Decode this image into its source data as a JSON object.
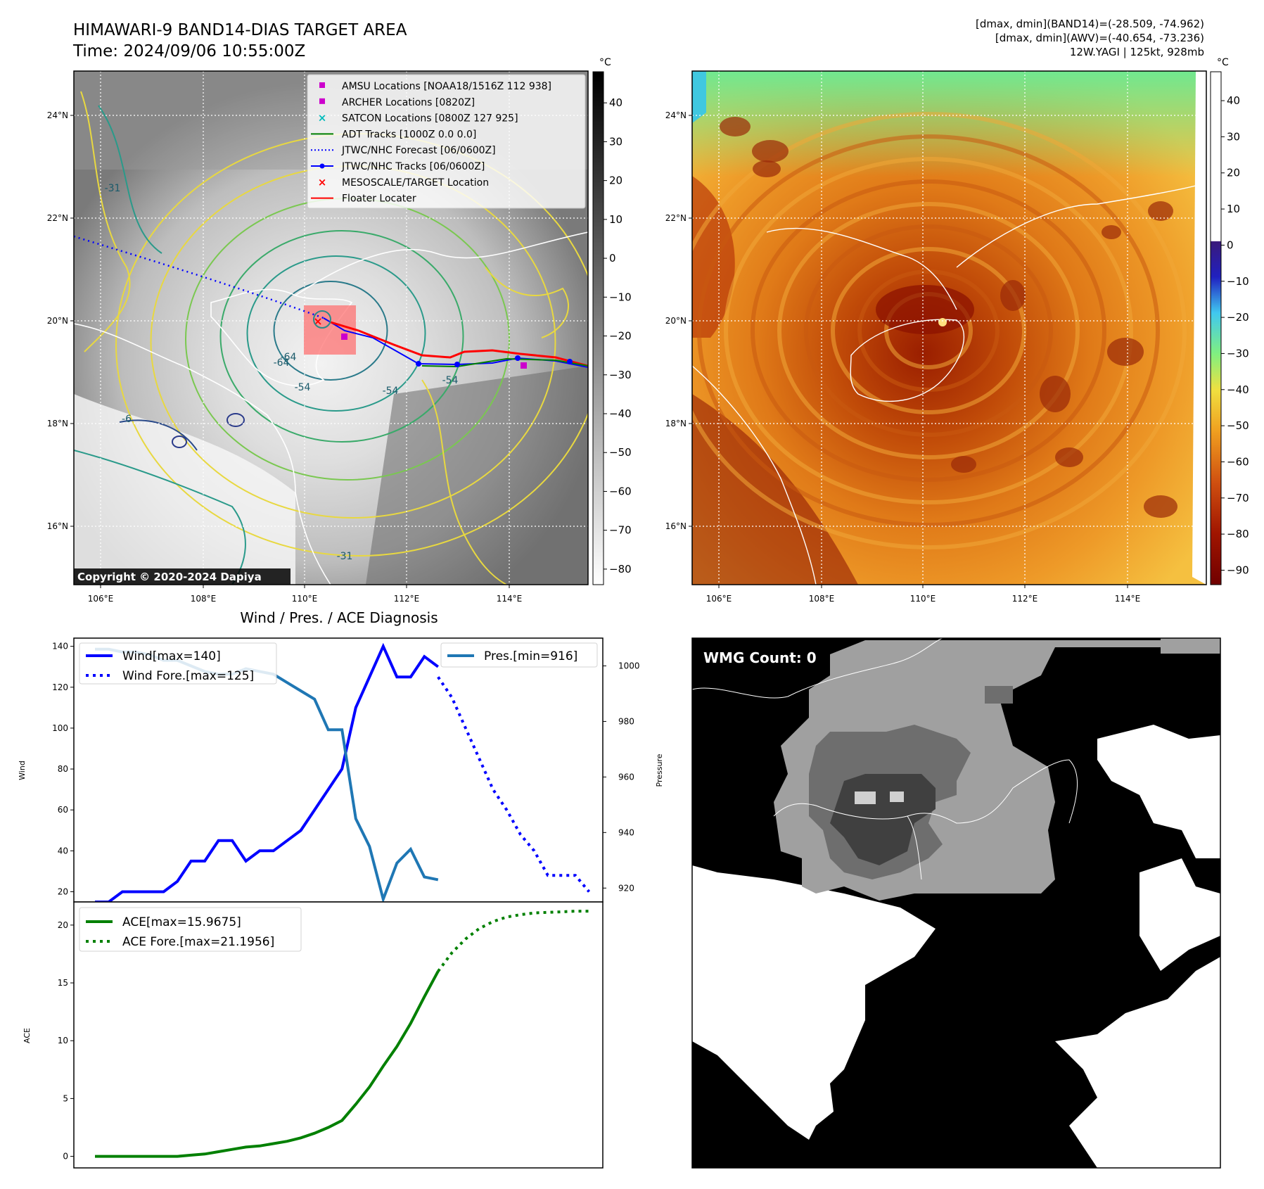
{
  "header": {
    "title_line1": "HIMAWARI-9 BAND14-DIAS TARGET AREA",
    "title_line2": "Time: 2024/09/06 10:55:00Z",
    "info_line1": "[dmax, dmin](BAND14)=(-28.509, -74.962)",
    "info_line2": "[dmax, dmin](AWV)=(-40.654, -73.236)",
    "info_line3": "12W.YAGI | 125kt, 928mb"
  },
  "map": {
    "lon_ticks": [
      "106°E",
      "108°E",
      "110°E",
      "112°E",
      "114°E"
    ],
    "lat_ticks": [
      "24°N",
      "22°N",
      "20°N",
      "18°N",
      "16°N"
    ],
    "copyright": "Copyright © 2020-2024 Dapiya",
    "contour_labels": [
      "-64",
      "-54",
      "-54",
      "-54",
      "-31",
      "-31",
      "-6",
      "-64"
    ],
    "legend": [
      {
        "label": "AMSU Locations [NOAA18/1516Z 112 938]",
        "color": "#cc00cc",
        "kind": "square"
      },
      {
        "label": "ARCHER Locations [0820Z]",
        "color": "#cc00cc",
        "kind": "square"
      },
      {
        "label": "SATCON Locations [0800Z 127 925]",
        "color": "#00bbbb",
        "kind": "x"
      },
      {
        "label": "ADT Tracks [1000Z 0.0 0.0]",
        "color": "#008000",
        "kind": "line"
      },
      {
        "label": "JTWC/NHC Forecast [06/0600Z]",
        "color": "#0000ff",
        "kind": "dotted"
      },
      {
        "label": "JTWC/NHC Tracks [06/0600Z]",
        "color": "#0000ff",
        "kind": "linedot"
      },
      {
        "label": "MESOSCALE/TARGET Location",
        "color": "#ff0000",
        "kind": "x"
      },
      {
        "label": "Floater Locater",
        "color": "#ff0000",
        "kind": "line"
      }
    ]
  },
  "colorbar_band14": {
    "unit": "°C",
    "ticks": [
      "40",
      "30",
      "20",
      "10",
      "0",
      "−10",
      "−20",
      "−30",
      "−40",
      "−50",
      "−60",
      "−70",
      "−80"
    ]
  },
  "colorbar_awv": {
    "unit": "°C",
    "ticks": [
      "40",
      "30",
      "20",
      "10",
      "0",
      "−10",
      "−20",
      "−30",
      "−40",
      "−50",
      "−60",
      "−70",
      "−80",
      "−90"
    ]
  },
  "diag_title": "Wind / Pres. / ACE Diagnosis",
  "wmg_label": "WMG Count: 0",
  "chart_data": [
    {
      "type": "line",
      "name_panel": "wind-pressure",
      "xlim": [
        0,
        37
      ],
      "y_left": {
        "label": "Wind",
        "ylim": [
          15,
          144
        ],
        "ticks": [
          20,
          40,
          60,
          80,
          100,
          120,
          140
        ]
      },
      "y_right": {
        "label": "Pressure",
        "ylim": [
          915,
          1010
        ],
        "ticks": [
          920,
          940,
          960,
          980,
          1000
        ]
      },
      "series": [
        {
          "name": "Wind[max=140]",
          "color": "#0000ff",
          "style": "solid",
          "axis": "left",
          "x": [
            0,
            1,
            2,
            3,
            4,
            5,
            6,
            7,
            8,
            9,
            10,
            11,
            12,
            13,
            14,
            15,
            16,
            17,
            18,
            19,
            20,
            21,
            22,
            23,
            24,
            25
          ],
          "y": [
            15,
            15,
            20,
            20,
            20,
            20,
            25,
            35,
            35,
            45,
            45,
            35,
            40,
            40,
            45,
            50,
            60,
            70,
            80,
            110,
            125,
            140,
            125,
            125,
            135,
            130
          ]
        },
        {
          "name": "Wind Fore.[max=125]",
          "color": "#0000ff",
          "style": "dotted",
          "axis": "left",
          "x": [
            25,
            26,
            27,
            28,
            29,
            30,
            31,
            32,
            33,
            34,
            35,
            36
          ],
          "y": [
            125,
            115,
            100,
            85,
            70,
            60,
            48,
            40,
            28,
            28,
            28,
            20
          ]
        },
        {
          "name": "Pres.[min=916]",
          "color": "#1f77b4",
          "style": "solid",
          "axis": "right",
          "x": [
            0,
            1,
            2,
            3,
            4,
            5,
            6,
            7,
            8,
            9,
            10,
            11,
            12,
            13,
            14,
            15,
            16,
            17,
            18,
            19,
            20,
            21,
            22,
            23,
            24,
            25
          ],
          "y": [
            1006,
            1006,
            1005,
            1005,
            1004,
            1002,
            1002,
            1000,
            998,
            997,
            997,
            999,
            998,
            997,
            994,
            991,
            988,
            977,
            977,
            945,
            935,
            916,
            929,
            934,
            924,
            923
          ]
        }
      ]
    },
    {
      "type": "line",
      "name_panel": "ace",
      "xlim": [
        0,
        37
      ],
      "ylabel": "ACE",
      "ylim": [
        -1,
        22
      ],
      "ticks": [
        0,
        5,
        10,
        15,
        20
      ],
      "series": [
        {
          "name": "ACE[max=15.9675]",
          "color": "#008000",
          "style": "solid",
          "x": [
            0,
            1,
            2,
            3,
            4,
            5,
            6,
            7,
            8,
            9,
            10,
            11,
            12,
            13,
            14,
            15,
            16,
            17,
            18,
            19,
            20,
            21,
            22,
            23,
            24,
            25
          ],
          "y": [
            0,
            0,
            0,
            0,
            0,
            0,
            0,
            0.1,
            0.2,
            0.4,
            0.6,
            0.8,
            0.9,
            1.1,
            1.3,
            1.6,
            2.0,
            2.5,
            3.1,
            4.5,
            6.0,
            7.8,
            9.5,
            11.5,
            13.8,
            16.0
          ]
        },
        {
          "name": "ACE Fore.[max=21.1956]",
          "color": "#008000",
          "style": "dotted",
          "x": [
            25,
            26,
            27,
            28,
            29,
            30,
            31,
            32,
            33,
            34,
            35,
            36
          ],
          "y": [
            16.0,
            17.6,
            18.8,
            19.7,
            20.3,
            20.7,
            20.9,
            21.05,
            21.1,
            21.15,
            21.2,
            21.2
          ]
        }
      ]
    }
  ]
}
